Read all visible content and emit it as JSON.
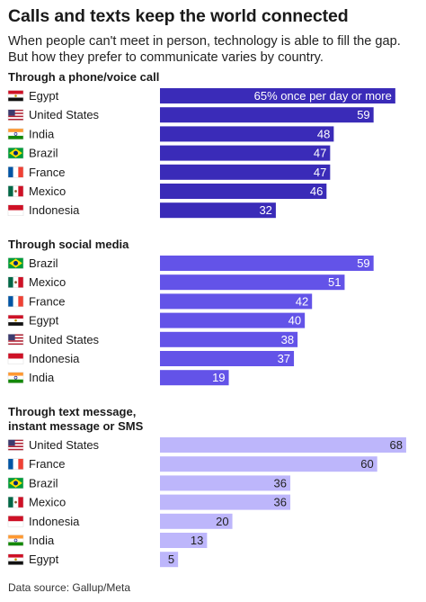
{
  "title": "Calls and texts keep the world connected",
  "subtitle": "When people can't meet in person, technology is able to fill the gap. But how they prefer to communicate varies by country.",
  "source": "Data source: Gallup/Meta",
  "chart_data": {
    "type": "bar",
    "orientation": "horizontal",
    "xlim": [
      0,
      70
    ],
    "grid": false,
    "legend": "none",
    "groups": [
      {
        "label": "Through a phone/voice call",
        "color": "#3a2bb8",
        "label_color": "#ffffff",
        "categories": [
          "Egypt",
          "United States",
          "India",
          "Brazil",
          "France",
          "Mexico",
          "Indonesia"
        ],
        "values": [
          65,
          59,
          48,
          47,
          47,
          46,
          32
        ],
        "value_labels": [
          "65% once per day or more",
          "59",
          "48",
          "47",
          "47",
          "46",
          "32"
        ]
      },
      {
        "label": "Through social media",
        "color": "#6353e8",
        "label_color": "#ffffff",
        "categories": [
          "Brazil",
          "Mexico",
          "France",
          "Egypt",
          "United States",
          "Indonesia",
          "India"
        ],
        "values": [
          59,
          51,
          42,
          40,
          38,
          37,
          19
        ],
        "value_labels": [
          "59",
          "51",
          "42",
          "40",
          "38",
          "37",
          "19"
        ]
      },
      {
        "label": "Through text message, instant message or SMS",
        "label_lines": [
          "Through text message,",
          "instant message or SMS"
        ],
        "color": "#bdb6fb",
        "label_color": "#222222",
        "categories": [
          "United States",
          "France",
          "Brazil",
          "Mexico",
          "Indonesia",
          "India",
          "Egypt"
        ],
        "values": [
          68,
          60,
          36,
          36,
          20,
          13,
          5
        ],
        "value_labels": [
          "68",
          "60",
          "36",
          "36",
          "20",
          "13",
          "5"
        ]
      }
    ],
    "flag_icons": {
      "Egypt": "egypt-flag-icon",
      "United States": "united-states-flag-icon",
      "India": "india-flag-icon",
      "Brazil": "brazil-flag-icon",
      "France": "france-flag-icon",
      "Mexico": "mexico-flag-icon",
      "Indonesia": "indonesia-flag-icon"
    }
  }
}
